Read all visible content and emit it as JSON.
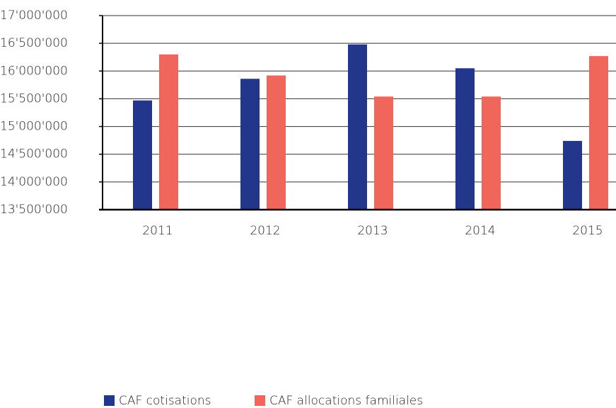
{
  "chart_data": {
    "type": "bar",
    "categories": [
      "2011",
      "2012",
      "2013",
      "2014",
      "2015"
    ],
    "series": [
      {
        "name": "CAF cotisations",
        "color": "#22368c",
        "values": [
          15470000,
          15860000,
          16480000,
          16050000,
          14740000
        ]
      },
      {
        "name": "CAF allocations familiales",
        "color": "#f0665a",
        "values": [
          16300000,
          15920000,
          15540000,
          15540000,
          16270000
        ]
      }
    ],
    "ylim": [
      13500000,
      17000000
    ],
    "yticks": [
      {
        "value": 13500000,
        "label": "13'500'000"
      },
      {
        "value": 14000000,
        "label": "14'000'000"
      },
      {
        "value": 14500000,
        "label": "14'500'000"
      },
      {
        "value": 15000000,
        "label": "15'000'000"
      },
      {
        "value": 15500000,
        "label": "15'500'000"
      },
      {
        "value": 16000000,
        "label": "16'000'000"
      },
      {
        "value": 16500000,
        "label": "16'500'000"
      },
      {
        "value": 17000000,
        "label": "17'000'000"
      }
    ],
    "grid": true
  }
}
